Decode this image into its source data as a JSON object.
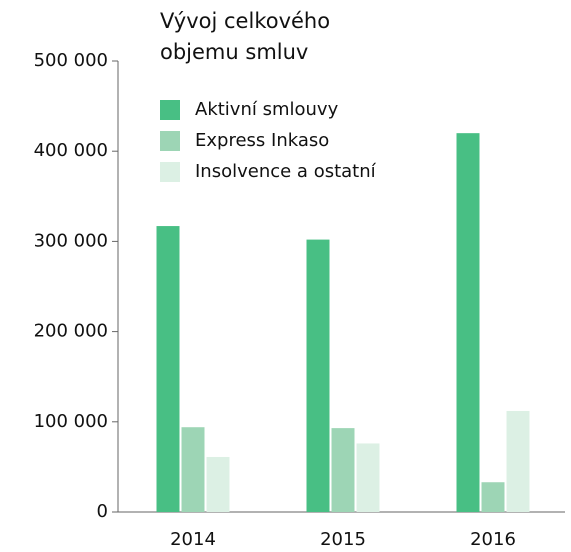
{
  "chart_data": {
    "type": "bar",
    "title": "Vývoj celkového objemu smluv",
    "categories": [
      "2014",
      "2015",
      "2016"
    ],
    "series": [
      {
        "name": "Aktivní smlouvy",
        "color": "#48bf84",
        "values": [
          317000,
          302000,
          420000
        ]
      },
      {
        "name": "Express Inkaso",
        "color": "#9dd5b5",
        "values": [
          94000,
          93000,
          33000
        ]
      },
      {
        "name": "Insolvence a ostatní",
        "color": "#dcf0e4",
        "values": [
          61000,
          76000,
          112000
        ]
      }
    ],
    "ylim": [
      0,
      500000
    ],
    "yticks": [
      0,
      {
        "value": 100000,
        "label": "100 000"
      },
      {
        "value": 200000,
        "label": "200 000"
      },
      {
        "value": 300000,
        "label": "300 000"
      },
      {
        "value": 400000,
        "label": "400 000"
      },
      {
        "value": 500000,
        "label": "500 000"
      }
    ],
    "legend": "top-left"
  }
}
